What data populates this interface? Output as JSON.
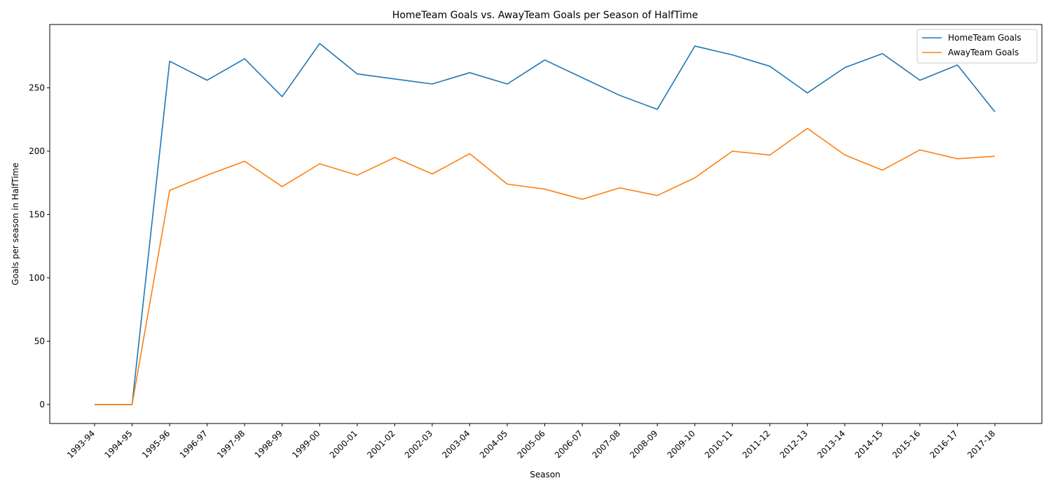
{
  "chart_data": {
    "type": "line",
    "title": "HomeTeam Goals vs. AwayTeam Goals per Season of HalfTime",
    "xlabel": "Season",
    "ylabel": "Goals per season in HalfTime",
    "categories": [
      "1993-94",
      "1994-95",
      "1995-96",
      "1996-97",
      "1997-98",
      "1998-99",
      "1999-00",
      "2000-01",
      "2001-02",
      "2002-03",
      "2003-04",
      "2004-05",
      "2005-06",
      "2006-07",
      "2007-08",
      "2008-09",
      "2009-10",
      "2010-11",
      "2011-12",
      "2012-13",
      "2013-14",
      "2014-15",
      "2015-16",
      "2016-17",
      "2017-18"
    ],
    "yticks": [
      0,
      50,
      100,
      150,
      200,
      250
    ],
    "ylim": [
      -15,
      300
    ],
    "grid": false,
    "legend_position": "top-right",
    "series": [
      {
        "name": "HomeTeam Goals",
        "color": "#1f77b4",
        "values": [
          0,
          0,
          271,
          256,
          273,
          243,
          285,
          261,
          257,
          253,
          262,
          253,
          272,
          258,
          244,
          233,
          283,
          276,
          267,
          246,
          266,
          277,
          256,
          268,
          231
        ]
      },
      {
        "name": "AwayTeam Goals",
        "color": "#ff7f0e",
        "values": [
          0,
          0,
          169,
          181,
          192,
          172,
          190,
          181,
          195,
          182,
          198,
          174,
          170,
          162,
          171,
          165,
          179,
          200,
          197,
          218,
          197,
          185,
          201,
          194,
          196
        ]
      }
    ]
  }
}
